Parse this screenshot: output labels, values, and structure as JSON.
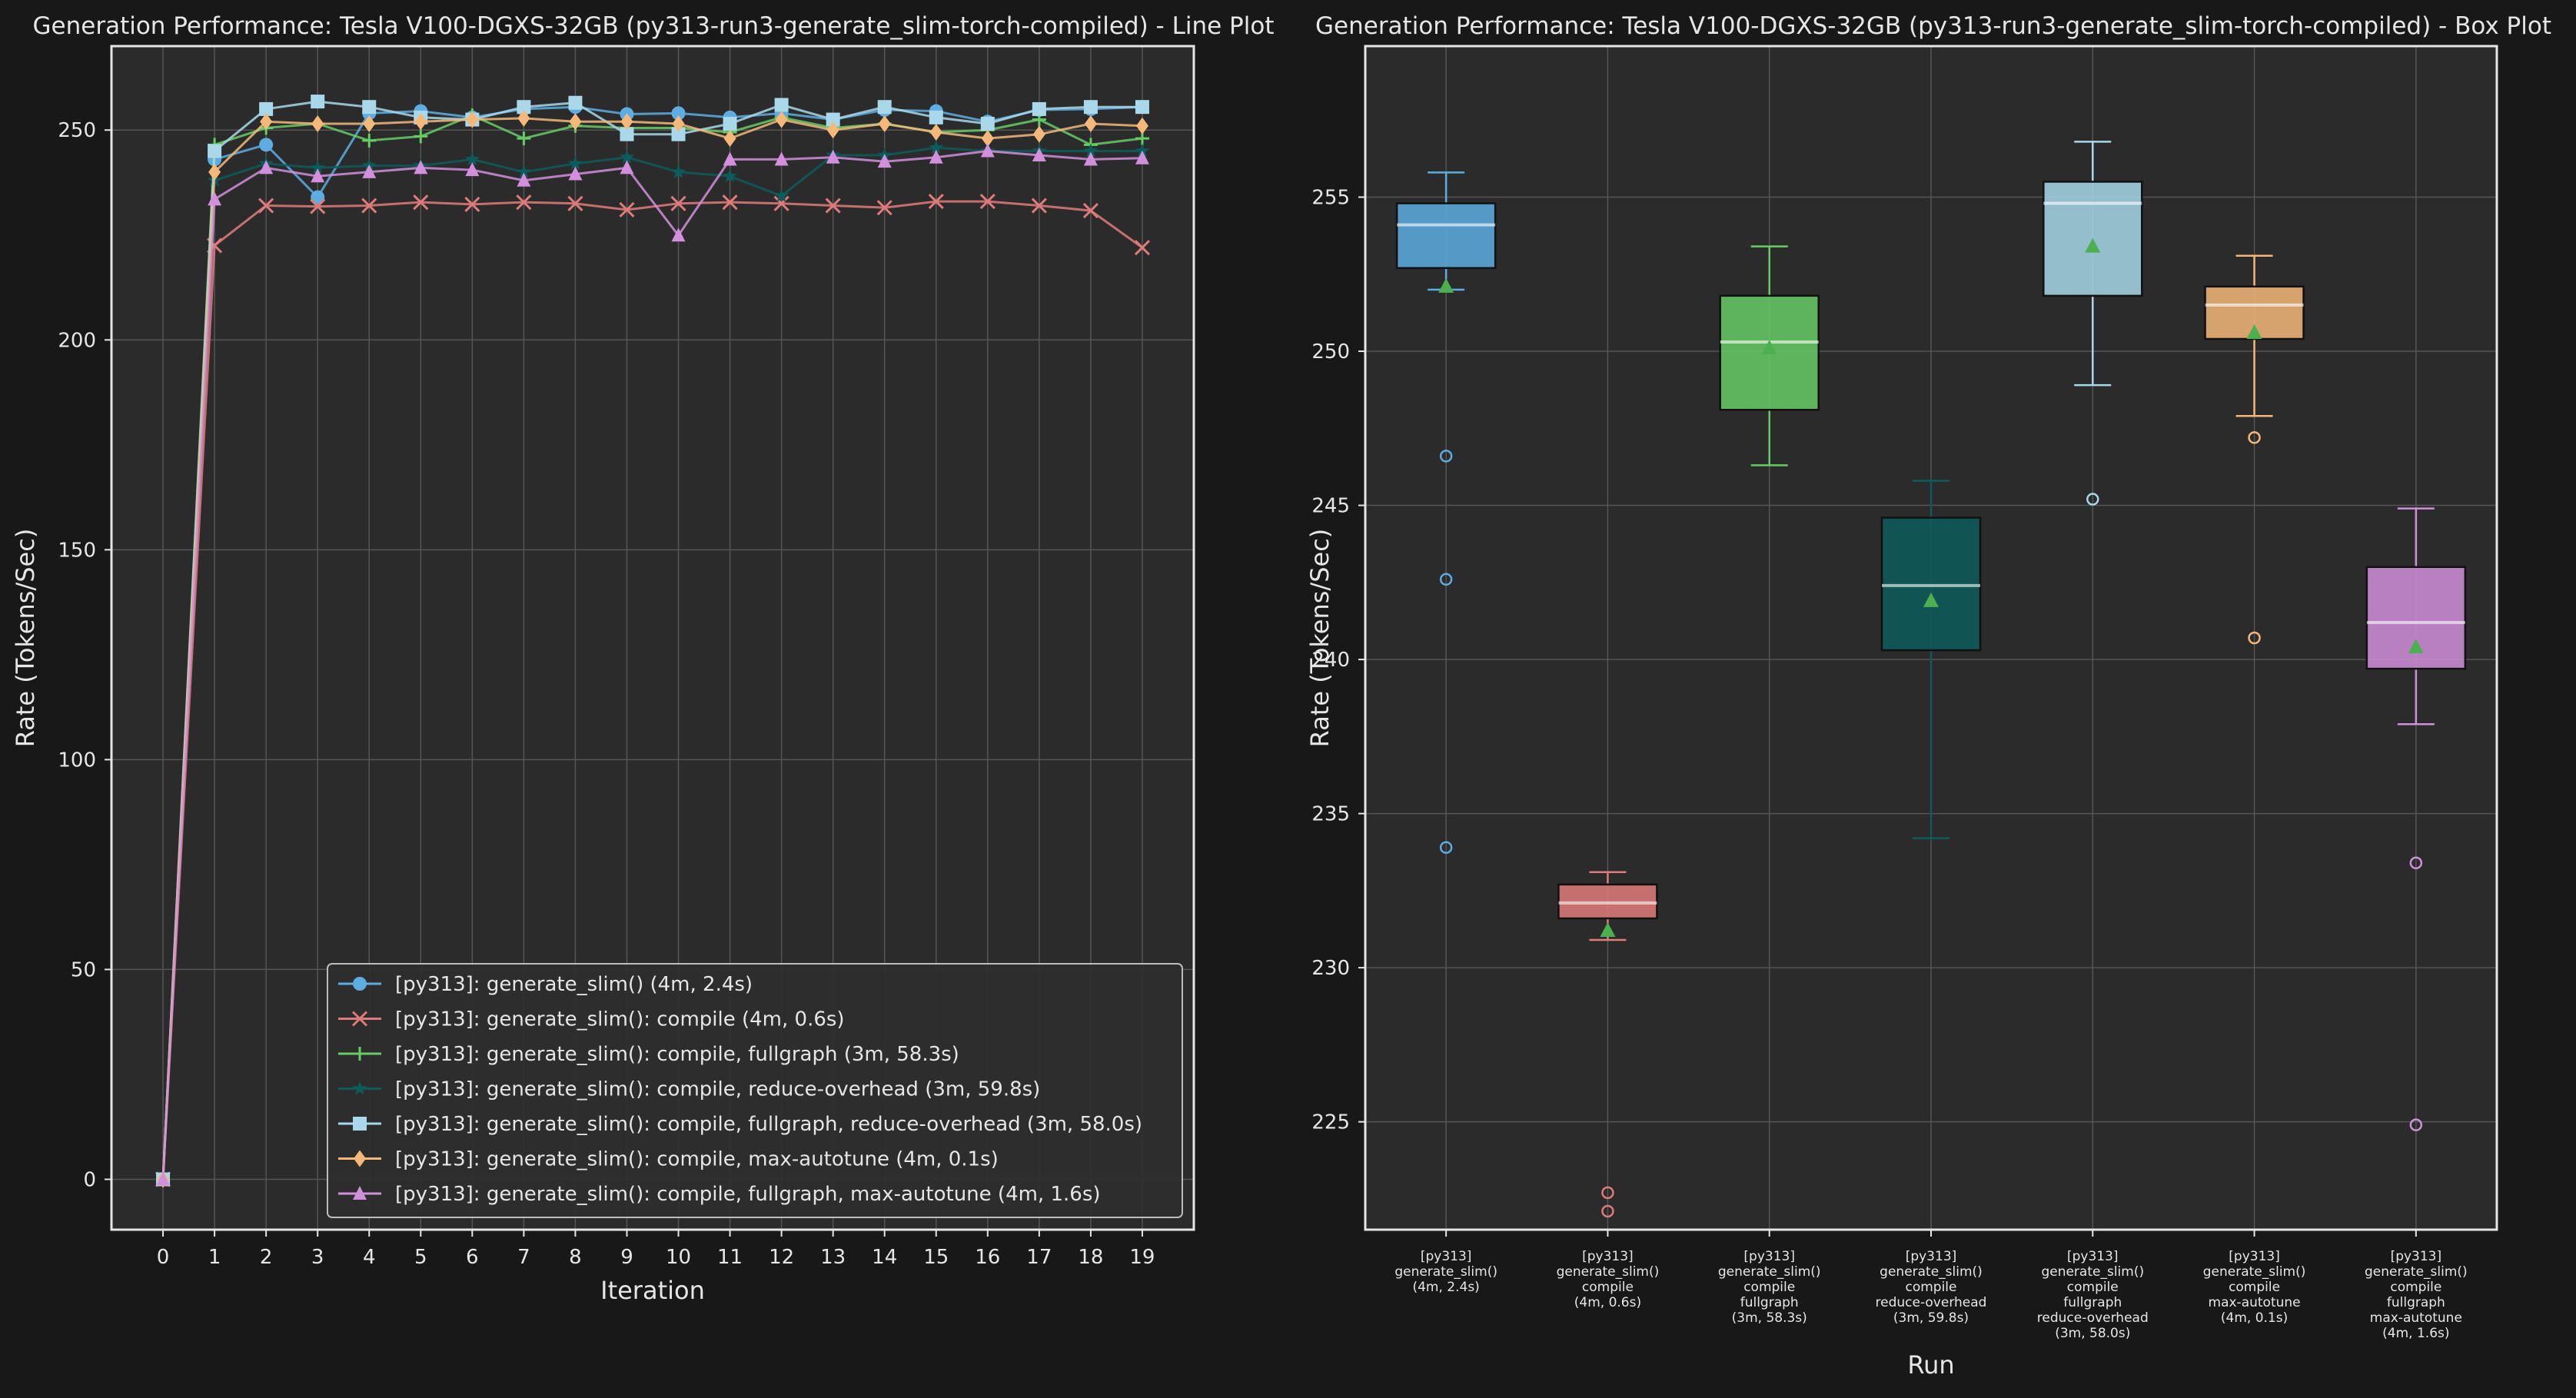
{
  "colors": {
    "background": "#181818",
    "plot_bg": "#2b2b2b",
    "grid": "#555555",
    "spine": "#e6e6e6",
    "text": "#e6e6e6",
    "mean_marker": "#4caf50"
  },
  "chart_data": [
    {
      "type": "line",
      "title": "Generation Performance: Tesla V100-DGXS-32GB (py313-run3-generate_slim-torch-compiled) - Line Plot",
      "xlabel": "Iteration",
      "ylabel": "Rate (Tokens/Sec)",
      "xlim": [
        -1,
        20
      ],
      "ylim": [
        -12,
        270
      ],
      "x": [
        0,
        1,
        2,
        3,
        4,
        5,
        6,
        7,
        8,
        9,
        10,
        11,
        12,
        13,
        14,
        15,
        16,
        17,
        18,
        19
      ],
      "yticks": [
        0,
        50,
        100,
        150,
        200,
        250
      ],
      "grid": true,
      "legend_position": "lower-right",
      "series": [
        {
          "name": "[py313]: generate_slim() (4m, 2.4s)",
          "color": "#5dade2",
          "marker": "circle",
          "values": [
            0,
            243,
            246.5,
            234,
            254,
            254.5,
            253,
            255,
            255.5,
            253.8,
            254,
            253,
            254,
            252.5,
            254.8,
            254.5,
            252,
            254.8,
            255,
            255.5
          ]
        },
        {
          "name": "[py313]: generate_slim(): compile (4m, 0.6s)",
          "color": "#e07b7b",
          "marker": "x",
          "values": [
            0,
            222.5,
            232,
            231.8,
            232,
            232.8,
            232.3,
            232.8,
            232.5,
            231,
            232.5,
            232.8,
            232.5,
            232,
            231.5,
            233,
            233,
            232,
            230.8,
            222
          ]
        },
        {
          "name": "[py313]: generate_slim(): compile, fullgraph (3m, 58.3s)",
          "color": "#66cc66",
          "marker": "plus",
          "values": [
            0,
            246.5,
            250.5,
            251.5,
            247.5,
            248.5,
            253.5,
            248,
            251,
            250.5,
            250.5,
            249.5,
            253,
            250.5,
            251.5,
            249.5,
            250,
            252.5,
            246.5,
            248
          ]
        },
        {
          "name": "[py313]: generate_slim(): compile, reduce-overhead (3m, 59.8s)",
          "color": "#0d5c5c",
          "marker": "star",
          "values": [
            0,
            238,
            242,
            241,
            241.5,
            241.5,
            243,
            240,
            242,
            243.5,
            240,
            239,
            234.3,
            244,
            244,
            245.8,
            245,
            245,
            245,
            245
          ]
        },
        {
          "name": "[py313]: generate_slim(): compile, fullgraph, reduce-overhead (3m, 58.0s)",
          "color": "#a8d8ea",
          "marker": "square",
          "values": [
            0,
            245,
            255,
            256.8,
            255.5,
            253,
            252.5,
            255.5,
            256.5,
            249,
            249,
            251.5,
            256,
            252.5,
            255.5,
            253,
            251.5,
            255,
            255.5,
            255.5
          ]
        },
        {
          "name": "[py313]: generate_slim(): compile, max-autotune (4m, 0.1s)",
          "color": "#f4b97a",
          "marker": "diamond",
          "values": [
            0,
            240,
            252,
            251.5,
            251.5,
            252,
            252.5,
            252.8,
            252,
            252,
            251.5,
            248,
            252.5,
            250,
            251.5,
            249.5,
            248,
            249,
            251.5,
            251
          ]
        },
        {
          "name": "[py313]: generate_slim(): compile, fullgraph, max-autotune (4m, 1.6s)",
          "color": "#d18fdc",
          "marker": "triangle",
          "values": [
            0,
            233.5,
            241,
            239,
            240,
            241,
            240.5,
            238,
            239.5,
            241,
            224.9,
            243,
            243,
            243.5,
            242.5,
            243.5,
            245,
            244,
            243,
            243.3
          ]
        }
      ]
    },
    {
      "type": "box",
      "title": "Generation Performance: Tesla V100-DGXS-32GB (py313-run3-generate_slim-torch-compiled) - Box Plot",
      "xlabel": "Run",
      "ylabel": "Rate (Tokens/Sec)",
      "ylim": [
        221.5,
        259.9
      ],
      "yticks": [
        225,
        230,
        235,
        240,
        245,
        250,
        255
      ],
      "grid": true,
      "boxes": [
        {
          "label_lines": [
            "[py313]",
            "generate_slim()",
            "(4m, 2.4s)"
          ],
          "color": "#5dade2",
          "whisker_low": 252,
          "q1": 252.7,
          "median": 254.1,
          "q3": 254.8,
          "whisker_high": 255.8,
          "mean": 252.1,
          "outliers": [
            246.6,
            242.6,
            233.9
          ]
        },
        {
          "label_lines": [
            "[py313]",
            "generate_slim()",
            "compile",
            "(4m, 0.6s)"
          ],
          "color": "#e07b7b",
          "whisker_low": 230.9,
          "q1": 231.6,
          "median": 232.1,
          "q3": 232.7,
          "whisker_high": 233.1,
          "mean": 231.2,
          "outliers": [
            222.7,
            222.1
          ]
        },
        {
          "label_lines": [
            "[py313]",
            "generate_slim()",
            "compile",
            "fullgraph",
            "(3m, 58.3s)"
          ],
          "color": "#66cc66",
          "whisker_low": 246.3,
          "q1": 248.1,
          "median": 250.3,
          "q3": 251.8,
          "whisker_high": 253.4,
          "mean": 250.1,
          "outliers": []
        },
        {
          "label_lines": [
            "[py313]",
            "generate_slim()",
            "compile",
            "reduce-overhead",
            "(3m, 59.8s)"
          ],
          "color": "#0d5c5c",
          "whisker_low": 234.2,
          "q1": 240.3,
          "median": 242.4,
          "q3": 244.6,
          "whisker_high": 245.8,
          "mean": 241.9,
          "outliers": []
        },
        {
          "label_lines": [
            "[py313]",
            "generate_slim()",
            "compile",
            "fullgraph",
            "reduce-overhead",
            "(3m, 58.0s)"
          ],
          "color": "#a8d8ea",
          "whisker_low": 248.9,
          "q1": 251.8,
          "median": 254.8,
          "q3": 255.5,
          "whisker_high": 256.8,
          "mean": 253.4,
          "outliers": [
            245.2
          ]
        },
        {
          "label_lines": [
            "[py313]",
            "generate_slim()",
            "compile",
            "max-autotune",
            "(4m, 0.1s)"
          ],
          "color": "#f4b97a",
          "whisker_low": 247.9,
          "q1": 250.4,
          "median": 251.5,
          "q3": 252.1,
          "whisker_high": 253.1,
          "mean": 250.6,
          "outliers": [
            247.2,
            240.7
          ]
        },
        {
          "label_lines": [
            "[py313]",
            "generate_slim()",
            "compile",
            "fullgraph",
            "max-autotune",
            "(4m, 1.6s)"
          ],
          "color": "#d18fdc",
          "whisker_low": 237.9,
          "q1": 239.7,
          "median": 241.2,
          "q3": 243,
          "whisker_high": 244.9,
          "mean": 240.4,
          "outliers": [
            233.4,
            224.9
          ]
        }
      ]
    }
  ]
}
